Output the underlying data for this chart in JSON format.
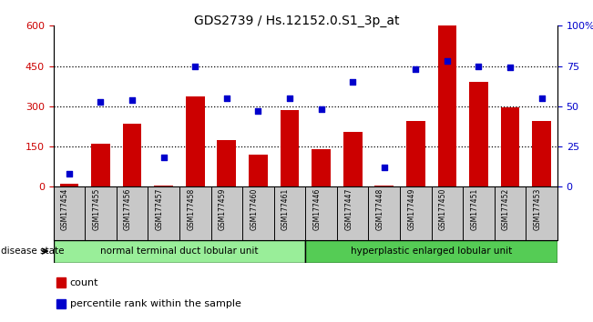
{
  "title": "GDS2739 / Hs.12152.0.S1_3p_at",
  "samples": [
    "GSM177454",
    "GSM177455",
    "GSM177456",
    "GSM177457",
    "GSM177458",
    "GSM177459",
    "GSM177460",
    "GSM177461",
    "GSM177446",
    "GSM177447",
    "GSM177448",
    "GSM177449",
    "GSM177450",
    "GSM177451",
    "GSM177452",
    "GSM177453"
  ],
  "counts": [
    10,
    160,
    235,
    5,
    335,
    175,
    120,
    285,
    140,
    205,
    5,
    245,
    600,
    390,
    295,
    245
  ],
  "percentiles": [
    8,
    53,
    54,
    18,
    75,
    55,
    47,
    55,
    48,
    65,
    12,
    73,
    78,
    75,
    74,
    55
  ],
  "group1_label": "normal terminal duct lobular unit",
  "group2_label": "hyperplastic enlarged lobular unit",
  "group1_count": 8,
  "group2_count": 8,
  "bar_color": "#cc0000",
  "dot_color": "#0000cc",
  "background_color": "#ffffff",
  "tick_area_color": "#c8c8c8",
  "group1_color": "#99ee99",
  "group2_color": "#55cc55",
  "ylim_left": [
    0,
    600
  ],
  "ylim_right": [
    0,
    100
  ],
  "yticks_left": [
    0,
    150,
    300,
    450,
    600
  ],
  "yticks_right": [
    0,
    25,
    50,
    75,
    100
  ],
  "ylabel_left_color": "#cc0000",
  "ylabel_right_color": "#0000cc",
  "disease_state_label": "disease state",
  "legend_count_label": "count",
  "legend_percentile_label": "percentile rank within the sample"
}
